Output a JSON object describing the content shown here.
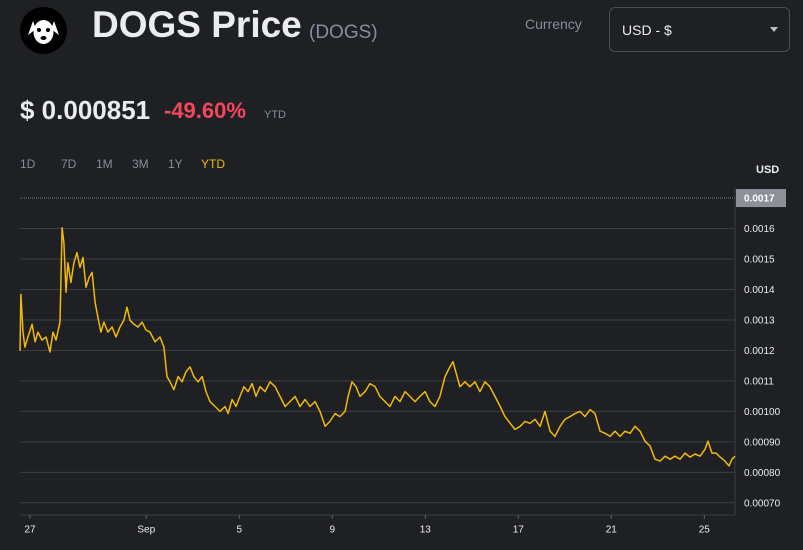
{
  "header": {
    "title": "DOGS Price",
    "symbol": "(DOGS)",
    "currency_label": "Currency",
    "currency": "USD - $",
    "price": "$ 0.000851",
    "change": "-49.60%",
    "change_period": "YTD",
    "ranges": [
      "1D",
      "7D",
      "1M",
      "3M",
      "1Y",
      "YTD"
    ],
    "active_range": "YTD"
  },
  "chart_data": {
    "type": "line",
    "y_unit": "USD",
    "color": "#f0b90b",
    "grid": true,
    "ylim": [
      0.00066,
      0.00171
    ],
    "yticks": [
      {
        "value": 0.0007,
        "label": "0.00070"
      },
      {
        "value": 0.0008,
        "label": "0.00080"
      },
      {
        "value": 0.0009,
        "label": "0.00090"
      },
      {
        "value": 0.001,
        "label": "0.00100"
      },
      0.0011,
      0.0012,
      0.0013,
      0.0014,
      0.0015,
      0.0016,
      0.0017
    ],
    "xlim": [
      26.57,
      57.32
    ],
    "xticks": [
      27,
      {
        "value": 32,
        "label": "Sep"
      },
      {
        "value": 36,
        "label": "5"
      },
      {
        "value": 40,
        "label": "9"
      },
      {
        "value": 44,
        "label": "13"
      },
      {
        "value": 48,
        "label": "17"
      },
      {
        "value": 52,
        "label": "21"
      },
      {
        "value": 56,
        "label": "25"
      }
    ],
    "x": [
      26.57,
      26.61,
      26.7,
      26.78,
      26.91,
      27.09,
      27.22,
      27.34,
      27.52,
      27.69,
      27.86,
      27.99,
      28.12,
      28.29,
      28.38,
      28.46,
      28.55,
      28.63,
      28.76,
      28.89,
      29.02,
      29.15,
      29.28,
      29.41,
      29.54,
      29.67,
      29.8,
      29.92,
      30.05,
      30.18,
      30.35,
      30.53,
      30.7,
      30.87,
      31.04,
      31.17,
      31.3,
      31.47,
      31.65,
      31.82,
      31.99,
      32.16,
      32.38,
      32.59,
      32.76,
      32.89,
      33.02,
      33.19,
      33.37,
      33.54,
      33.71,
      33.88,
      34.05,
      34.23,
      34.4,
      34.57,
      34.74,
      34.96,
      35.17,
      35.39,
      35.52,
      35.69,
      35.86,
      36.03,
      36.2,
      36.38,
      36.55,
      36.72,
      36.89,
      37.11,
      37.32,
      37.54,
      37.75,
      37.97,
      38.18,
      38.4,
      38.61,
      38.83,
      39.04,
      39.26,
      39.47,
      39.69,
      39.9,
      40.12,
      40.33,
      40.55,
      40.68,
      40.85,
      41.02,
      41.19,
      41.41,
      41.62,
      41.84,
      42.05,
      42.27,
      42.48,
      42.7,
      42.91,
      43.13,
      43.34,
      43.56,
      43.77,
      43.99,
      44.2,
      44.42,
      44.63,
      44.85,
      45.06,
      45.19,
      45.37,
      45.49,
      45.71,
      45.92,
      46.14,
      46.35,
      46.57,
      46.78,
      47.0,
      47.22,
      47.43,
      47.65,
      47.86,
      48.08,
      48.29,
      48.51,
      48.72,
      48.94,
      49.15,
      49.37,
      49.58,
      49.8,
      50.01,
      50.23,
      50.44,
      50.66,
      50.87,
      51.09,
      51.3,
      51.52,
      51.73,
      51.95,
      52.16,
      52.38,
      52.59,
      52.81,
      53.02,
      53.24,
      53.45,
      53.67,
      53.88,
      54.1,
      54.31,
      54.53,
      54.74,
      54.96,
      55.17,
      55.39,
      55.6,
      55.82,
      56.03,
      56.16,
      56.33,
      56.51,
      56.68,
      56.89,
      57.06,
      57.19,
      57.32
    ],
    "values": [
      0.001198,
      0.001384,
      0.00126,
      0.001211,
      0.001244,
      0.001286,
      0.001228,
      0.00126,
      0.001234,
      0.001244,
      0.001195,
      0.00126,
      0.001234,
      0.001293,
      0.001602,
      0.001553,
      0.001391,
      0.001488,
      0.001423,
      0.001488,
      0.001521,
      0.001472,
      0.001505,
      0.001407,
      0.001439,
      0.001456,
      0.001358,
      0.001309,
      0.00126,
      0.001293,
      0.00126,
      0.001277,
      0.001244,
      0.001277,
      0.001299,
      0.001342,
      0.001299,
      0.001286,
      0.001277,
      0.001293,
      0.001267,
      0.00126,
      0.001228,
      0.001244,
      0.001211,
      0.001114,
      0.001097,
      0.001071,
      0.001114,
      0.001097,
      0.00113,
      0.001146,
      0.001114,
      0.001097,
      0.001114,
      0.001065,
      0.001032,
      0.001016,
      0.001,
      0.001016,
      0.000993,
      0.001039,
      0.001016,
      0.001049,
      0.001081,
      0.001065,
      0.001091,
      0.001049,
      0.001081,
      0.001065,
      0.001097,
      0.001081,
      0.001049,
      0.001016,
      0.001032,
      0.001049,
      0.001016,
      0.001039,
      0.001016,
      0.001032,
      0.001,
      0.000951,
      0.000967,
      0.000993,
      0.000983,
      0.001,
      0.001049,
      0.001097,
      0.001081,
      0.001049,
      0.001065,
      0.001091,
      0.001081,
      0.001049,
      0.001032,
      0.001016,
      0.001049,
      0.001032,
      0.001065,
      0.001049,
      0.001032,
      0.001049,
      0.001065,
      0.001032,
      0.001016,
      0.001049,
      0.001114,
      0.001146,
      0.001163,
      0.001114,
      0.001081,
      0.001097,
      0.001081,
      0.001097,
      0.001065,
      0.001097,
      0.001081,
      0.001049,
      0.001016,
      0.000983,
      0.000961,
      0.000941,
      0.000951,
      0.000967,
      0.000961,
      0.000974,
      0.000951,
      0.001,
      0.000935,
      0.000918,
      0.000951,
      0.000974,
      0.000983,
      0.000993,
      0.001,
      0.000983,
      0.001006,
      0.000993,
      0.000935,
      0.000928,
      0.000918,
      0.000935,
      0.000918,
      0.000935,
      0.000928,
      0.000951,
      0.000935,
      0.000902,
      0.000886,
      0.000843,
      0.000837,
      0.000853,
      0.000843,
      0.000853,
      0.000843,
      0.000863,
      0.00085,
      0.00086,
      0.000853,
      0.000876,
      0.000902,
      0.000863,
      0.000863,
      0.00085,
      0.000837,
      0.000821,
      0.000843,
      0.000853
    ]
  }
}
